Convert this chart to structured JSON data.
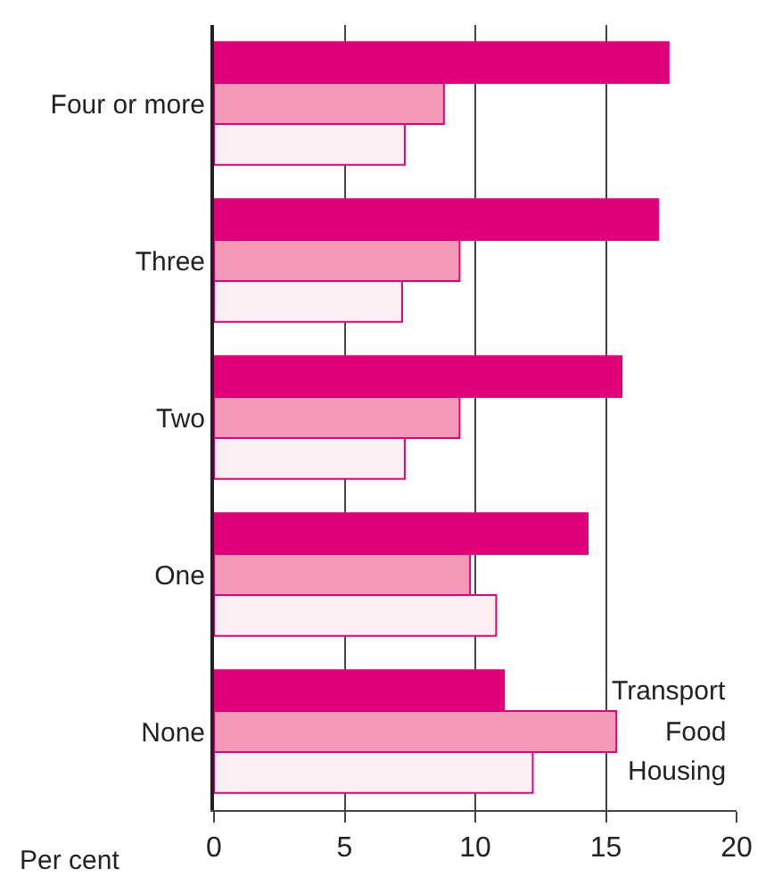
{
  "chart_data": {
    "type": "bar",
    "orientation": "horizontal",
    "xlabel": "Per cent",
    "categories": [
      "Four or more",
      "Three",
      "Two",
      "One",
      "None"
    ],
    "series": [
      {
        "name": "Transport",
        "color": "#e2007a",
        "values": [
          17.4,
          17.0,
          15.6,
          14.3,
          11.1
        ]
      },
      {
        "name": "Food",
        "color": "#f49ab8",
        "values": [
          8.8,
          9.4,
          9.4,
          9.8,
          15.4
        ]
      },
      {
        "name": "Housing",
        "color": "#fdeff2",
        "values": [
          7.3,
          7.2,
          7.3,
          10.8,
          12.2
        ]
      }
    ],
    "xlim": [
      0,
      20
    ],
    "xticks": [
      0,
      5,
      10,
      15,
      20
    ],
    "grid": "x"
  }
}
